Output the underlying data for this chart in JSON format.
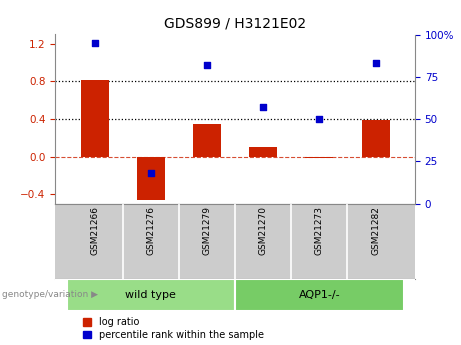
{
  "title": "GDS899 / H3121E02",
  "categories": [
    "GSM21266",
    "GSM21276",
    "GSM21279",
    "GSM21270",
    "GSM21273",
    "GSM21282"
  ],
  "log_ratio": [
    0.82,
    -0.46,
    0.35,
    0.1,
    -0.02,
    0.39
  ],
  "percentile_rank": [
    95,
    18,
    82,
    57,
    50,
    83
  ],
  "bar_color": "#cc2200",
  "dot_color": "#0000cc",
  "ylim_left": [
    -0.5,
    1.3
  ],
  "ylim_right": [
    0,
    100
  ],
  "yticks_left": [
    -0.4,
    0.0,
    0.4,
    0.8,
    1.2
  ],
  "yticks_right": [
    0,
    25,
    50,
    75,
    100
  ],
  "hline_75": 0.8,
  "hline_50": 0.4,
  "zero_line": 0.0,
  "groups": [
    {
      "label": "wild type",
      "indices": [
        0,
        1,
        2
      ],
      "color": "#99dd88"
    },
    {
      "label": "AQP1-/-",
      "indices": [
        3,
        4,
        5
      ],
      "color": "#77cc66"
    }
  ],
  "genotype_label": "genotype/variation",
  "legend_bar_label": "log ratio",
  "legend_dot_label": "percentile rank within the sample",
  "background_color": "#ffffff",
  "plot_bg_color": "#ffffff",
  "label_bg_color": "#cccccc",
  "tick_label_color_left": "#cc2200",
  "tick_label_color_right": "#0000cc",
  "bar_width": 0.5
}
